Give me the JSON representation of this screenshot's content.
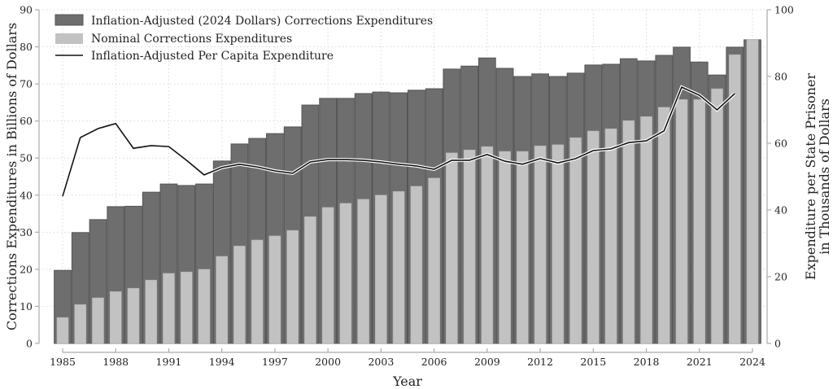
{
  "chart_data": {
    "type": "bar",
    "title": "",
    "xlabel": "Year",
    "ylabel": "Corrections Expenditures in Billions of Dollars",
    "y2label_line1": "Expenditure per State Prisoner",
    "y2label_line2": "in Thousands of Dollars",
    "ylim": [
      0,
      90
    ],
    "y2lim": [
      0,
      100
    ],
    "xlim": [
      1985,
      2024
    ],
    "yticks": [
      0,
      10,
      20,
      30,
      40,
      50,
      60,
      70,
      80,
      90
    ],
    "y2ticks": [
      0,
      20,
      40,
      60,
      80,
      100
    ],
    "xticks": [
      1985,
      1988,
      1991,
      1994,
      1997,
      2000,
      2003,
      2006,
      2009,
      2012,
      2015,
      2018,
      2021,
      2024
    ],
    "grid": true,
    "legend_position": "top-left",
    "x": [
      1985,
      1986,
      1987,
      1988,
      1989,
      1990,
      1991,
      1992,
      1993,
      1994,
      1995,
      1996,
      1997,
      1998,
      1999,
      2000,
      2001,
      2002,
      2003,
      2004,
      2005,
      2006,
      2007,
      2008,
      2009,
      2010,
      2011,
      2012,
      2013,
      2014,
      2015,
      2016,
      2017,
      2018,
      2019,
      2020,
      2021,
      2022,
      2023,
      2024
    ],
    "series": [
      {
        "name": "Inflation-Adjusted (2024 Dollars) Corrections Expenditures",
        "kind": "bar",
        "axis": "left",
        "color": "#6e6e6e",
        "values": [
          19.7,
          29.9,
          33.4,
          36.9,
          37.0,
          40.8,
          43.0,
          42.6,
          43.0,
          49.2,
          53.8,
          55.3,
          56.6,
          58.4,
          64.3,
          66.1,
          66.1,
          67.4,
          67.8,
          67.6,
          68.3,
          68.7,
          74.0,
          74.8,
          77.0,
          74.2,
          72.0,
          72.7,
          72.0,
          72.9,
          75.1,
          75.3,
          76.8,
          76.2,
          77.7,
          79.9,
          75.9,
          72.4,
          79.9,
          81.9
        ]
      },
      {
        "name": "Nominal Corrections Expenditures",
        "kind": "bar",
        "axis": "left",
        "color": "#c2c2c2",
        "values": [
          7.0,
          10.5,
          12.3,
          14.0,
          14.9,
          17.1,
          18.9,
          19.3,
          20.0,
          23.5,
          26.3,
          27.9,
          29.0,
          30.5,
          34.2,
          36.7,
          37.8,
          38.9,
          40.0,
          41.0,
          42.4,
          44.6,
          51.4,
          52.2,
          53.1,
          51.8,
          51.8,
          53.3,
          53.6,
          55.5,
          57.3,
          57.9,
          60.1,
          61.2,
          63.7,
          65.8,
          65.8,
          68.7,
          77.9,
          81.9
        ]
      },
      {
        "name": "Inflation-Adjusted Per Capita Expenditure",
        "kind": "line",
        "axis": "right",
        "color": "#111111",
        "values": [
          44.1,
          61.7,
          64.4,
          65.9,
          58.5,
          59.3,
          59.0,
          54.9,
          50.5,
          52.7,
          53.7,
          52.9,
          51.7,
          51.0,
          54.4,
          55.1,
          55.1,
          54.9,
          54.4,
          53.7,
          53.2,
          52.2,
          54.9,
          54.9,
          56.6,
          54.6,
          53.7,
          55.4,
          54.1,
          55.4,
          57.8,
          58.3,
          60.2,
          60.7,
          63.7,
          76.8,
          74.4,
          70.0,
          74.9,
          null
        ]
      }
    ]
  }
}
